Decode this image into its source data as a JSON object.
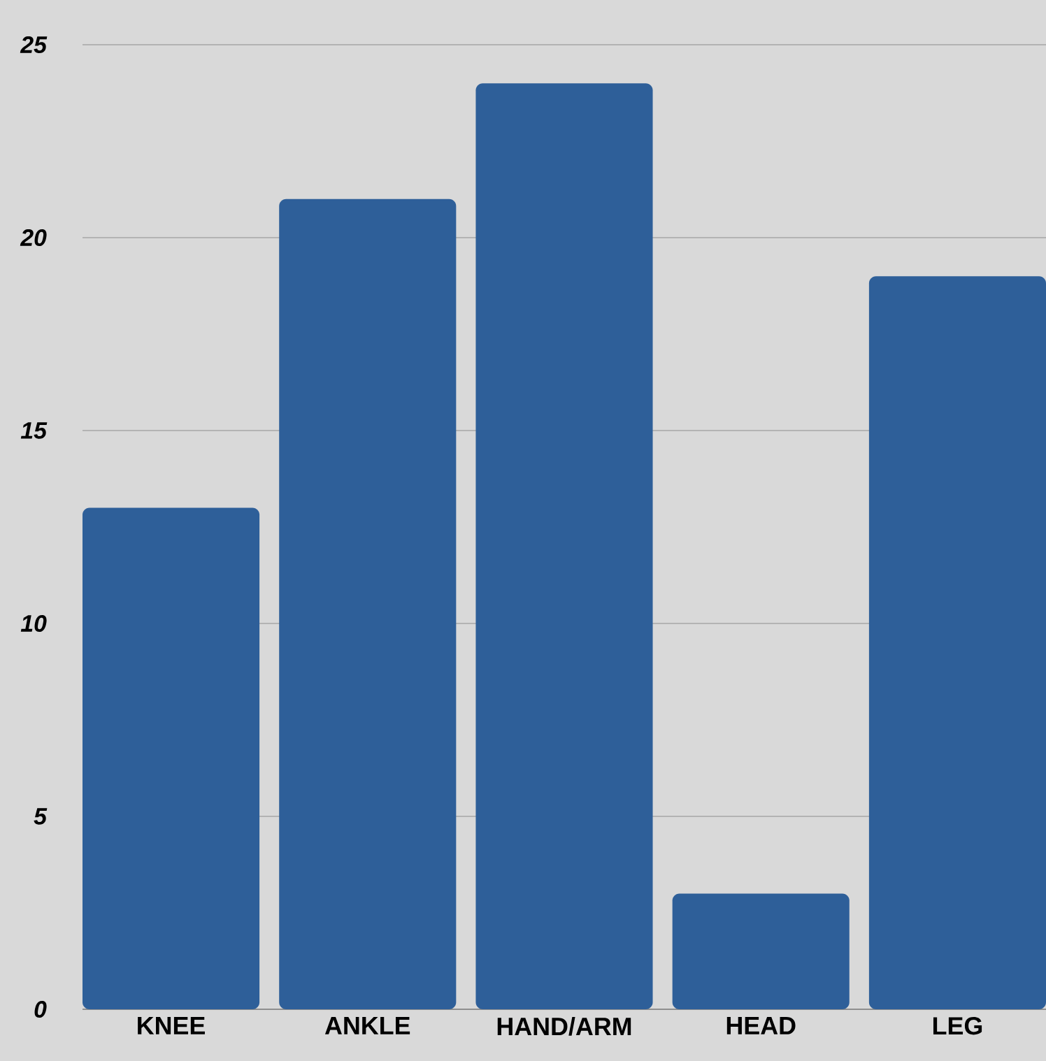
{
  "chart_data": {
    "type": "bar",
    "categories": [
      "KNEE",
      "ANKLE",
      "HAND/ARM",
      "HEAD",
      "LEG"
    ],
    "values": [
      13,
      21,
      24,
      3,
      19
    ],
    "color": "#2e5f99",
    "ylim": [
      0,
      25
    ],
    "yticks": [
      0,
      5,
      10,
      15,
      20,
      25
    ],
    "grid": "y"
  }
}
